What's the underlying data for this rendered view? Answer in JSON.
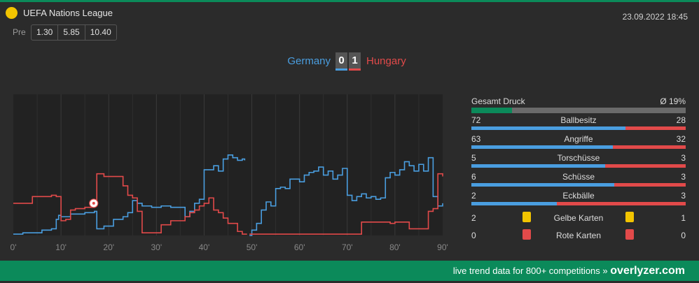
{
  "header": {
    "competition": "UEFA Nations League",
    "datetime": "23.09.2022 18:45",
    "pre_label": "Pre",
    "odds": [
      "1.30",
      "5.85",
      "10.40"
    ]
  },
  "match": {
    "home_team": "Germany",
    "away_team": "Hungary",
    "home_score": "0",
    "away_score": "1"
  },
  "colors": {
    "home": "#4a9ee0",
    "away": "#e24a4a",
    "accent": "#0b8a5a",
    "yellow_card": "#f2c400",
    "red_card": "#e24a4a"
  },
  "chart_data": {
    "type": "line",
    "x_ticks": [
      "0'",
      "10'",
      "20'",
      "30'",
      "40'",
      "50'",
      "60'",
      "70'",
      "80'",
      "90'"
    ],
    "xlim": [
      0,
      90
    ],
    "ylim": [
      0,
      100
    ],
    "grid": true,
    "goal_event": {
      "minute": 17,
      "team": "Hungary",
      "icon": "soccer-ball-icon"
    },
    "series": [
      {
        "team": "home",
        "points": [
          [
            0,
            1
          ],
          [
            2,
            2
          ],
          [
            6,
            4
          ],
          [
            8,
            5
          ],
          [
            9,
            12
          ],
          [
            9.5,
            15
          ],
          [
            10,
            14
          ],
          [
            12,
            16
          ],
          [
            15,
            17
          ],
          [
            17,
            18
          ],
          [
            17.5,
            5
          ],
          [
            19,
            7
          ],
          [
            21,
            12
          ],
          [
            23,
            14
          ],
          [
            24,
            17
          ],
          [
            25,
            26
          ],
          [
            26,
            24
          ],
          [
            27,
            22
          ],
          [
            29,
            21
          ],
          [
            31,
            22
          ],
          [
            33,
            21
          ],
          [
            35,
            21
          ],
          [
            36,
            14
          ],
          [
            37,
            18
          ],
          [
            38,
            24
          ],
          [
            39,
            27
          ],
          [
            40,
            49
          ],
          [
            42,
            52
          ],
          [
            43,
            48
          ],
          [
            44,
            57
          ],
          [
            45,
            60
          ],
          [
            46,
            58
          ],
          [
            47,
            56
          ],
          [
            48,
            57
          ],
          [
            48.5,
            56
          ]
        ],
        "points2": [
          [
            49.5,
            0
          ],
          [
            50,
            4
          ],
          [
            51,
            9
          ],
          [
            52,
            19
          ],
          [
            53,
            25
          ],
          [
            54,
            22
          ],
          [
            55,
            35
          ],
          [
            56,
            36
          ],
          [
            57,
            35
          ],
          [
            58,
            42
          ],
          [
            60,
            40
          ],
          [
            61,
            45
          ],
          [
            62,
            47
          ],
          [
            63,
            48
          ],
          [
            64,
            51
          ],
          [
            65,
            45
          ],
          [
            66,
            48
          ],
          [
            67,
            42
          ],
          [
            68,
            45
          ],
          [
            69,
            50
          ],
          [
            70,
            30
          ],
          [
            71,
            26
          ],
          [
            72,
            29
          ],
          [
            73,
            31
          ],
          [
            74,
            28
          ],
          [
            75,
            29
          ],
          [
            76,
            27
          ],
          [
            77,
            28
          ],
          [
            78,
            43
          ],
          [
            79,
            47
          ],
          [
            80,
            45
          ],
          [
            81,
            49
          ],
          [
            82,
            55
          ],
          [
            83,
            52
          ],
          [
            84,
            48
          ],
          [
            85,
            53
          ],
          [
            86,
            48
          ],
          [
            87,
            58
          ],
          [
            88,
            29
          ],
          [
            89,
            22
          ],
          [
            90,
            24
          ]
        ]
      },
      {
        "team": "away",
        "points": [
          [
            0,
            24
          ],
          [
            4,
            29
          ],
          [
            8,
            30
          ],
          [
            9,
            29
          ],
          [
            10,
            11
          ],
          [
            11,
            12
          ],
          [
            12,
            19
          ],
          [
            13,
            20
          ],
          [
            15,
            21
          ],
          [
            17,
            22
          ],
          [
            17.5,
            46
          ],
          [
            19,
            44
          ],
          [
            21,
            44
          ],
          [
            23,
            37
          ],
          [
            24,
            30
          ],
          [
            25,
            28
          ],
          [
            26,
            18
          ],
          [
            27,
            2
          ],
          [
            30,
            2
          ],
          [
            31,
            8
          ],
          [
            33,
            11
          ],
          [
            35,
            11
          ],
          [
            36,
            14
          ],
          [
            37,
            17
          ],
          [
            38,
            19
          ],
          [
            39,
            22
          ],
          [
            40,
            24
          ],
          [
            41,
            28
          ],
          [
            42,
            19
          ],
          [
            43,
            17
          ],
          [
            44,
            13
          ],
          [
            45,
            9
          ],
          [
            46,
            9
          ],
          [
            47,
            3
          ],
          [
            48,
            1
          ],
          [
            49,
            1
          ]
        ],
        "points2": [
          [
            49.5,
            1
          ],
          [
            72,
            1
          ],
          [
            73,
            10
          ],
          [
            75,
            10
          ],
          [
            78,
            10
          ],
          [
            79,
            9
          ],
          [
            80,
            10
          ],
          [
            81,
            10
          ],
          [
            83,
            5
          ],
          [
            85,
            5
          ],
          [
            86,
            5
          ],
          [
            87,
            18
          ],
          [
            88,
            20
          ],
          [
            89,
            46
          ],
          [
            90,
            44
          ]
        ]
      }
    ]
  },
  "stats": {
    "pressure": {
      "label": "Gesamt Druck",
      "value": "Ø 19%",
      "fraction": 0.19
    },
    "rows": [
      {
        "label": "Ballbesitz",
        "home": "72",
        "away": "28",
        "home_fraction": 0.72
      },
      {
        "label": "Angriffe",
        "home": "63",
        "away": "32",
        "home_fraction": 0.66
      },
      {
        "label": "Torschüsse",
        "home": "5",
        "away": "3",
        "home_fraction": 0.625
      },
      {
        "label": "Schüsse",
        "home": "6",
        "away": "3",
        "home_fraction": 0.667
      },
      {
        "label": "Eckbälle",
        "home": "2",
        "away": "3",
        "home_fraction": 0.4
      }
    ],
    "cards": [
      {
        "label": "Gelbe Karten",
        "home": "2",
        "away": "1",
        "type": "yellow"
      },
      {
        "label": "Rote Karten",
        "home": "0",
        "away": "0",
        "type": "red"
      }
    ]
  },
  "footer": {
    "text": "live trend data for 800+ competitions »",
    "brand": "overlyzer.com"
  }
}
